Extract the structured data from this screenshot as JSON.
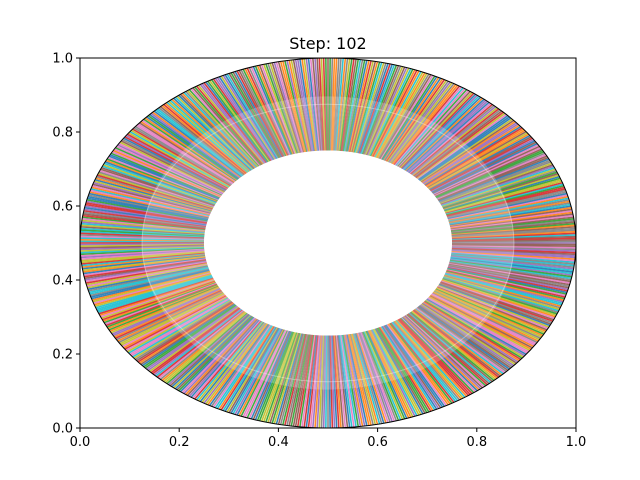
{
  "chart_data": {
    "type": "scatter",
    "title": "Step: 102",
    "xlabel": "",
    "ylabel": "",
    "xlim": [
      0.0,
      1.0
    ],
    "ylim": [
      0.0,
      1.0
    ],
    "xticks": [
      0.0,
      0.2,
      0.4,
      0.6,
      0.8,
      1.0
    ],
    "yticks": [
      0.0,
      0.2,
      0.4,
      0.6,
      0.8,
      1.0
    ],
    "xtick_labels": [
      "0.0",
      "0.2",
      "0.4",
      "0.6",
      "0.8",
      "1.0"
    ],
    "ytick_labels": [
      "0.0",
      "0.2",
      "0.4",
      "0.6",
      "0.8",
      "1.0"
    ],
    "grid": false,
    "legend": "none",
    "annulus": {
      "center": [
        0.5,
        0.5
      ],
      "inner_radius": 0.25,
      "middle_radius": 0.375,
      "outer_radius": 0.5,
      "ray_count": 720,
      "outer_edge_color": "#000000"
    },
    "palette": [
      "#1f77b4",
      "#ff7f0e",
      "#2ca02c",
      "#d62728",
      "#9467bd",
      "#8c564b",
      "#e377c2",
      "#7f7f7f",
      "#bcbd22",
      "#17becf"
    ]
  }
}
